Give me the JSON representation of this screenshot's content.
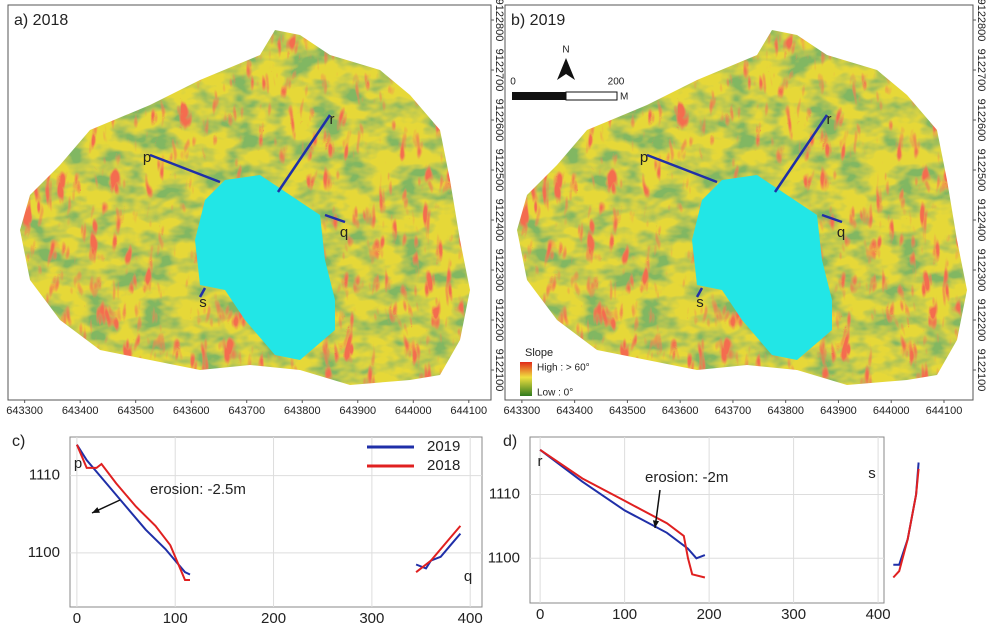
{
  "maps": [
    {
      "label": "a) 2018",
      "xlim": [
        643270,
        644140
      ],
      "ylim": [
        9122040,
        9122830
      ],
      "xticks": [
        643300,
        643400,
        643500,
        643600,
        643700,
        643800,
        643900,
        644000,
        644100
      ],
      "yticks": [
        9122100,
        9122200,
        9122300,
        9122400,
        9122500,
        9122600,
        9122700,
        9122800
      ],
      "profiles": [
        "p",
        "r",
        "q",
        "s"
      ]
    },
    {
      "label": "b) 2019",
      "xlim": [
        643268,
        644155
      ],
      "ylim": [
        9122040,
        9122830
      ],
      "xticks": [
        643300,
        643400,
        643500,
        643600,
        643700,
        643800,
        643900,
        644000,
        644100
      ],
      "yticks": [
        9122100,
        9122200,
        9122300,
        9122400,
        9122500,
        9122600,
        9122700,
        9122800
      ],
      "profiles": [
        "p",
        "r",
        "q",
        "s"
      ],
      "north": "N",
      "scale_bar": {
        "start": "0",
        "end": "200",
        "unit": "M"
      },
      "legend": {
        "title": "Slope",
        "high": "High : > 60°",
        "low": "Low : 0°"
      }
    }
  ],
  "chart_data": [
    {
      "type": "line",
      "title": "c)",
      "xlim": [
        -7,
        412
      ],
      "ylim": [
        1093,
        1115
      ],
      "xticks": [
        0,
        100,
        200,
        300,
        400
      ],
      "yticks": [
        1100,
        1110
      ],
      "grid": true,
      "legend": "upper right",
      "end_labels": [
        "p",
        "q"
      ],
      "annotation": "erosion: -2.5m",
      "series": [
        {
          "name": "2019",
          "color": "#1f2fa8",
          "x": [
            0,
            10,
            30,
            50,
            70,
            90,
            100,
            110,
            115,
            null,
            345,
            355,
            360,
            370,
            380,
            390
          ],
          "values": [
            1114,
            1112,
            1109,
            1106,
            1103,
            1100.5,
            1099,
            1097.5,
            1097.2,
            null,
            1098.5,
            1098,
            1099,
            1099.5,
            1101,
            1102.5
          ]
        },
        {
          "name": "2018",
          "color": "#e02020",
          "x": [
            0,
            10,
            20,
            25,
            40,
            60,
            80,
            95,
            105,
            110,
            115,
            null,
            345,
            360,
            380,
            390
          ],
          "values": [
            1114,
            1111,
            1111,
            1111.5,
            1109,
            1106,
            1103.5,
            1101,
            1098,
            1096.5,
            1096.5,
            null,
            1097.5,
            1099,
            1102,
            1103.5
          ]
        }
      ]
    },
    {
      "type": "line",
      "title": "d)",
      "xlim": [
        -12,
        407
      ],
      "ylim": [
        1093,
        1119
      ],
      "xticks": [
        0,
        100,
        200,
        300,
        400
      ],
      "yticks": [
        1100,
        1110
      ],
      "grid": true,
      "end_labels": [
        "r",
        "s"
      ],
      "annotation": "erosion: -2m",
      "series": [
        {
          "color": "#1f2fa8",
          "x": [
            0,
            50,
            100,
            150,
            175,
            185,
            195,
            null,
            418,
            425,
            435,
            445,
            448
          ],
          "values": [
            1117,
            1112,
            1107.5,
            1104,
            1101.5,
            1100,
            1100.5,
            null,
            1099,
            1099,
            1103,
            1110,
            1115
          ]
        },
        {
          "color": "#e02020",
          "x": [
            0,
            50,
            100,
            150,
            170,
            175,
            180,
            195,
            null,
            418,
            425,
            435,
            445,
            448
          ],
          "values": [
            1117,
            1112.5,
            1109,
            1105.5,
            1103.5,
            1100,
            1097.5,
            1097,
            null,
            1097,
            1098,
            1103,
            1110,
            1114
          ]
        }
      ]
    }
  ]
}
